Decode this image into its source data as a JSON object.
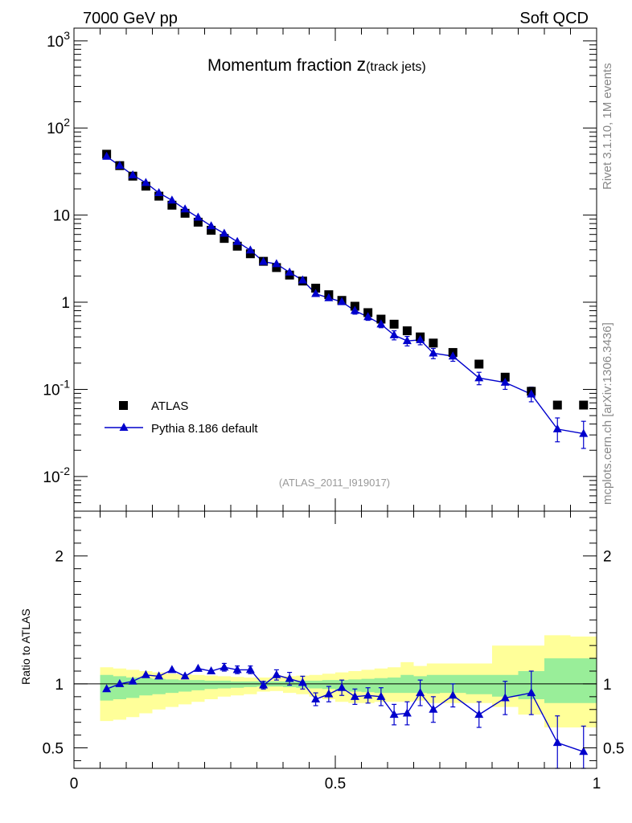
{
  "header": {
    "left": "7000 GeV pp",
    "right": "Soft QCD"
  },
  "side_text": {
    "rivet": "Rivet 3.1.10,  1M events",
    "mcplots": "mcplots.cern.ch [arXiv:1306.3436]"
  },
  "chart_data": [
    {
      "type": "scatter",
      "title": "Momentum fraction z(track jets)",
      "title_main": "Momentum fraction ",
      "title_var": "z",
      "title_sub": "(track jets)",
      "watermark": "(ATLAS_2011_I919017)",
      "yscale": "log",
      "xlim": [
        0,
        1
      ],
      "ylim": [
        0.004,
        1400
      ],
      "legend_position": "bottom-left",
      "y_tick_labels": [
        "10-2",
        "10-1",
        "1",
        "10",
        "102",
        "103"
      ],
      "x": [
        0.0625,
        0.0875,
        0.1125,
        0.1375,
        0.1625,
        0.1875,
        0.2125,
        0.2375,
        0.2625,
        0.2875,
        0.3125,
        0.3375,
        0.3625,
        0.3875,
        0.4125,
        0.4375,
        0.4625,
        0.4875,
        0.5125,
        0.5375,
        0.5625,
        0.5875,
        0.6125,
        0.6375,
        0.6625,
        0.6875,
        0.725,
        0.775,
        0.825,
        0.875,
        0.925,
        0.975
      ],
      "series": [
        {
          "name": "ATLAS",
          "color": "#000000",
          "marker": "square",
          "values": [
            50,
            37,
            28,
            21.5,
            16.5,
            13,
            10.5,
            8.3,
            6.7,
            5.4,
            4.4,
            3.6,
            2.95,
            2.5,
            2.05,
            1.75,
            1.45,
            1.22,
            1.05,
            0.9,
            0.76,
            0.64,
            0.56,
            0.47,
            0.4,
            0.34,
            0.265,
            0.195,
            0.138,
            0.095,
            0.066,
            0.066
          ]
        },
        {
          "name": "Pythia 8.186 default",
          "color": "#0000cc",
          "marker": "triangle",
          "values": [
            47,
            37,
            28.8,
            23.5,
            18,
            14.8,
            11.7,
            9.4,
            7.5,
            6.15,
            4.95,
            3.95,
            2.92,
            2.75,
            2.2,
            1.79,
            1.25,
            1.12,
            1.01,
            0.8,
            0.68,
            0.56,
            0.42,
            0.36,
            0.37,
            0.26,
            0.24,
            0.135,
            0.12,
            0.088,
            0.035,
            0.031
          ],
          "err_hi": [
            2,
            1.5,
            1.2,
            1,
            0.8,
            0.6,
            0.5,
            0.4,
            0.35,
            0.3,
            0.25,
            0.2,
            0.15,
            0.15,
            0.12,
            0.1,
            0.1,
            0.08,
            0.08,
            0.07,
            0.06,
            0.05,
            0.05,
            0.045,
            0.045,
            0.035,
            0.03,
            0.022,
            0.02,
            0.018,
            0.012,
            0.012
          ],
          "err_lo": [
            2,
            1.5,
            1.2,
            1,
            0.8,
            0.6,
            0.5,
            0.4,
            0.35,
            0.3,
            0.25,
            0.2,
            0.15,
            0.15,
            0.12,
            0.1,
            0.1,
            0.08,
            0.08,
            0.07,
            0.06,
            0.05,
            0.05,
            0.045,
            0.045,
            0.035,
            0.03,
            0.022,
            0.02,
            0.016,
            0.01,
            0.01
          ]
        }
      ]
    },
    {
      "type": "line",
      "ylabel": "Ratio to ATLAS",
      "xlim": [
        0,
        1
      ],
      "ylim": [
        0.34,
        2.35
      ],
      "x_tick_labels": [
        "0",
        "0.5",
        "1"
      ],
      "y_tick_labels": [
        "0.5",
        "1",
        "2"
      ],
      "reference_line": 1,
      "bin_edges": [
        0.05,
        0.075,
        0.1,
        0.125,
        0.15,
        0.175,
        0.2,
        0.225,
        0.25,
        0.275,
        0.3,
        0.325,
        0.35,
        0.375,
        0.4,
        0.425,
        0.45,
        0.475,
        0.5,
        0.525,
        0.55,
        0.575,
        0.6,
        0.625,
        0.65,
        0.675,
        0.7,
        0.75,
        0.8,
        0.85,
        0.9,
        0.95,
        1.0
      ],
      "band_colors": {
        "inner": "#99ee99",
        "outer": "#ffff99"
      },
      "band_inner_hi": [
        1.07,
        1.06,
        1.05,
        1.045,
        1.04,
        1.035,
        1.03,
        1.03,
        1.025,
        1.025,
        1.02,
        1.02,
        1.02,
        1.02,
        1.02,
        1.025,
        1.025,
        1.03,
        1.03,
        1.035,
        1.04,
        1.045,
        1.05,
        1.07,
        1.06,
        1.07,
        1.07,
        1.07,
        1.07,
        1.1,
        1.2,
        1.2
      ],
      "band_inner_lo": [
        0.87,
        0.88,
        0.89,
        0.91,
        0.92,
        0.93,
        0.94,
        0.95,
        0.96,
        0.965,
        0.97,
        0.975,
        0.98,
        0.98,
        0.975,
        0.97,
        0.965,
        0.96,
        0.95,
        0.94,
        0.935,
        0.93,
        0.93,
        0.93,
        0.93,
        0.925,
        0.93,
        0.92,
        0.9,
        0.88,
        0.85,
        0.85
      ],
      "band_outer_hi": [
        1.13,
        1.12,
        1.11,
        1.1,
        1.09,
        1.08,
        1.075,
        1.07,
        1.065,
        1.06,
        1.055,
        1.05,
        1.05,
        1.055,
        1.06,
        1.065,
        1.07,
        1.08,
        1.09,
        1.1,
        1.11,
        1.12,
        1.13,
        1.17,
        1.14,
        1.16,
        1.16,
        1.16,
        1.3,
        1.3,
        1.38,
        1.37
      ],
      "band_outer_lo": [
        0.71,
        0.72,
        0.74,
        0.77,
        0.8,
        0.82,
        0.84,
        0.86,
        0.88,
        0.9,
        0.91,
        0.92,
        0.94,
        0.945,
        0.93,
        0.92,
        0.9,
        0.88,
        0.86,
        0.85,
        0.85,
        0.86,
        0.86,
        0.86,
        0.87,
        0.85,
        0.85,
        0.85,
        0.82,
        0.76,
        0.66,
        0.66
      ],
      "x": [
        0.0625,
        0.0875,
        0.1125,
        0.1375,
        0.1625,
        0.1875,
        0.2125,
        0.2375,
        0.2625,
        0.2875,
        0.3125,
        0.3375,
        0.3625,
        0.3875,
        0.4125,
        0.4375,
        0.4625,
        0.4875,
        0.5125,
        0.5375,
        0.5625,
        0.5875,
        0.6125,
        0.6375,
        0.6625,
        0.6875,
        0.725,
        0.775,
        0.825,
        0.875,
        0.925,
        0.975
      ],
      "series": [
        {
          "name": "Pythia 8.186 default",
          "color": "#0000cc",
          "marker": "triangle",
          "values": [
            0.96,
            1.0,
            1.02,
            1.07,
            1.06,
            1.11,
            1.06,
            1.12,
            1.1,
            1.13,
            1.11,
            1.11,
            0.99,
            1.07,
            1.04,
            1.01,
            0.88,
            0.92,
            0.97,
            0.9,
            0.91,
            0.9,
            0.76,
            0.77,
            0.93,
            0.8,
            0.91,
            0.76,
            0.89,
            0.93,
            0.54,
            0.47
          ],
          "err_hi": [
            0.02,
            0.02,
            0.02,
            0.02,
            0.02,
            0.02,
            0.02,
            0.025,
            0.025,
            0.03,
            0.03,
            0.03,
            0.03,
            0.04,
            0.05,
            0.05,
            0.05,
            0.06,
            0.06,
            0.06,
            0.06,
            0.07,
            0.08,
            0.09,
            0.1,
            0.1,
            0.09,
            0.1,
            0.13,
            0.17,
            0.21,
            0.2
          ],
          "err_lo": [
            0.02,
            0.02,
            0.02,
            0.02,
            0.02,
            0.02,
            0.02,
            0.025,
            0.025,
            0.03,
            0.03,
            0.03,
            0.03,
            0.04,
            0.05,
            0.05,
            0.05,
            0.06,
            0.06,
            0.06,
            0.06,
            0.07,
            0.08,
            0.09,
            0.1,
            0.1,
            0.09,
            0.1,
            0.13,
            0.17,
            0.21,
            0.2
          ]
        }
      ]
    }
  ]
}
